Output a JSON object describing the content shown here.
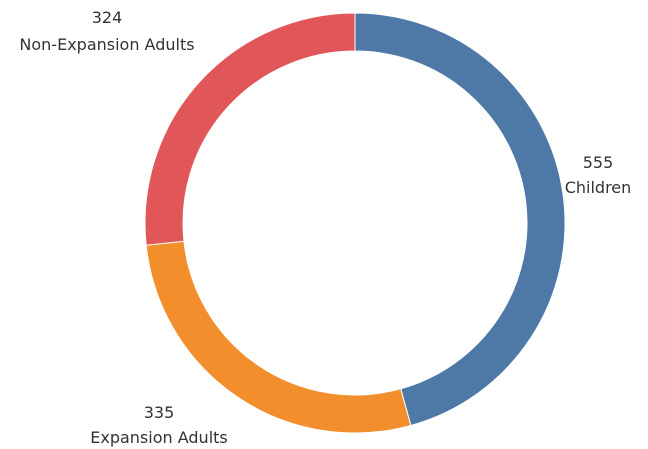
{
  "chart_data": {
    "type": "pie",
    "variant": "donut",
    "title": "",
    "legend": "none",
    "slices": [
      {
        "label": "Children",
        "value": 555,
        "value_label": "555",
        "color": "#4e79a7"
      },
      {
        "label": "Expansion Adults",
        "value": 335,
        "value_label": "335",
        "color": "#f28e2b"
      },
      {
        "label": "Non-Expansion Adults",
        "value": 324,
        "value_label": "324",
        "color": "#e15759"
      }
    ]
  }
}
